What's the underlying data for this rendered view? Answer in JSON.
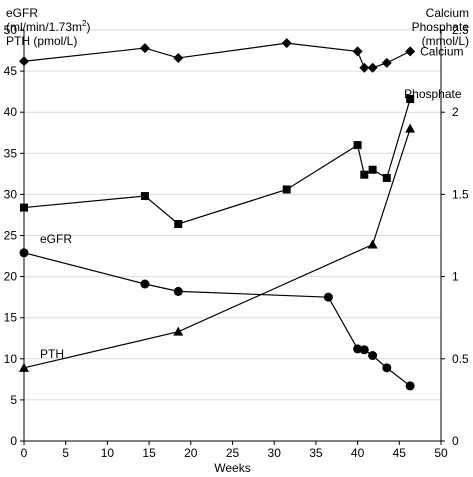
{
  "chart_data": {
    "type": "line",
    "xlabel": "Weeks",
    "x_ticks": [
      0,
      5,
      10,
      15,
      20,
      25,
      30,
      35,
      40,
      45,
      50
    ],
    "xlim": [
      0,
      50
    ],
    "left_axis": {
      "label_lines": [
        "eGFR",
        "(ml/min/1.73m",
        "PTH (pmol/L)"
      ],
      "label_superscript": "2",
      "label_after_superscript": ")",
      "ylim": [
        0,
        50
      ],
      "ticks": [
        0,
        5,
        10,
        15,
        20,
        25,
        30,
        35,
        40,
        45,
        50
      ]
    },
    "right_axis": {
      "label_lines": [
        "Calcium",
        "Phosphate",
        "(mmol/L)"
      ],
      "ylim": [
        0,
        2.5
      ],
      "ticks": [
        "0",
        "0.5",
        "1",
        "1.5",
        "2",
        "2.5"
      ]
    },
    "grid": true,
    "color": "#000000",
    "series": [
      {
        "name": "Calcium",
        "axis": "right",
        "marker": "diamond",
        "x": [
          0,
          14.5,
          18.5,
          31.5,
          40,
          40.8,
          41.8,
          43.5,
          46.3
        ],
        "y": [
          2.31,
          2.39,
          2.33,
          2.42,
          2.37,
          2.27,
          2.27,
          2.3,
          2.37
        ],
        "label_at": "end-right"
      },
      {
        "name": "Phosphate",
        "axis": "right",
        "marker": "square",
        "x": [
          0,
          14.5,
          18.5,
          31.5,
          40,
          40.8,
          41.8,
          43.5,
          46.3
        ],
        "y": [
          1.42,
          1.49,
          1.32,
          1.53,
          1.8,
          1.62,
          1.65,
          1.6,
          2.08
        ],
        "label_at": "end-top"
      },
      {
        "name": "eGFR",
        "axis": "left",
        "marker": "circle",
        "x": [
          0,
          14.5,
          18.5,
          36.5,
          40,
          40.8,
          41.8,
          43.5,
          46.3
        ],
        "y": [
          22.9,
          19.1,
          18.2,
          17.5,
          11.2,
          11.1,
          10.4,
          8.9,
          6.7
        ],
        "label_at": "start-above"
      },
      {
        "name": "PTH",
        "axis": "left",
        "marker": "triangle",
        "x": [
          0,
          18.5,
          41.8,
          46.3
        ],
        "y": [
          8.9,
          13.3,
          23.9,
          38.0
        ],
        "label_at": "start-above"
      }
    ]
  }
}
